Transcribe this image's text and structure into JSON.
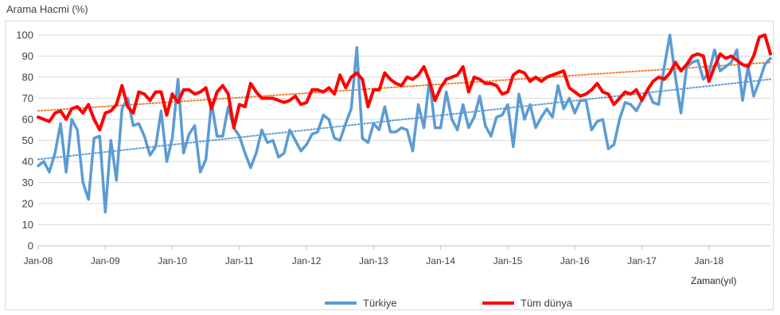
{
  "chart_data": {
    "type": "line",
    "ylabel": "Arama Hacmi (%)",
    "xlabel": "Zaman(yıl)",
    "ylim": [
      0,
      100
    ],
    "yticks": [
      0,
      10,
      20,
      30,
      40,
      50,
      60,
      70,
      80,
      90,
      100
    ],
    "x_start": "2008-01",
    "x_end": "2018-12",
    "x_ticks": [
      "Jan-08",
      "Jan-09",
      "Jan-10",
      "Jan-11",
      "Jan-12",
      "Jan-13",
      "Jan-14",
      "Jan-15",
      "Jan-16",
      "Jan-17",
      "Jan-18"
    ],
    "grid": "horizontal",
    "legend_position": "bottom",
    "series": [
      {
        "name": "Türkiye",
        "color": "#5b9bd5",
        "trendline": {
          "color": "#5b9bd5",
          "style": "dotted",
          "start": 41,
          "end": 79
        },
        "values": [
          38,
          40,
          35,
          44,
          58,
          35,
          60,
          55,
          30,
          22,
          51,
          52,
          16,
          50,
          31,
          65,
          70,
          57,
          58,
          52,
          43,
          47,
          64,
          40,
          51,
          79,
          44,
          53,
          57,
          35,
          41,
          68,
          52,
          52,
          66,
          56,
          52,
          44,
          37,
          44,
          55,
          49,
          50,
          42,
          44,
          55,
          50,
          45,
          48,
          53,
          54,
          62,
          60,
          51,
          50,
          58,
          65,
          94,
          51,
          49,
          58,
          55,
          66,
          54,
          54,
          56,
          55,
          45,
          67,
          56,
          79,
          56,
          56,
          73,
          60,
          55,
          67,
          56,
          61,
          71,
          57,
          52,
          61,
          62,
          67,
          47,
          72,
          60,
          67,
          56,
          61,
          65,
          61,
          76,
          65,
          70,
          63,
          69,
          69,
          55,
          59,
          60,
          46,
          48,
          60,
          68,
          67,
          64,
          69,
          74,
          68,
          67,
          85,
          100,
          80,
          63,
          85,
          87,
          88,
          79,
          82,
          93,
          83,
          85,
          87,
          93,
          69,
          85,
          71,
          78,
          86,
          89
        ]
      },
      {
        "name": "Tüm dünya",
        "color": "#ff0000",
        "trendline": {
          "color": "#ed7d31",
          "style": "dotted",
          "start": 64,
          "end": 87
        },
        "values": [
          61,
          60,
          59,
          63,
          64,
          60,
          65,
          66,
          63,
          67,
          60,
          55,
          63,
          64,
          67,
          76,
          66,
          63,
          73,
          72,
          69,
          73,
          73,
          62,
          72,
          68,
          74,
          74,
          72,
          73,
          75,
          65,
          73,
          76,
          72,
          56,
          67,
          66,
          77,
          73,
          70,
          70,
          70,
          69,
          68,
          69,
          71,
          67,
          68,
          74,
          74,
          73,
          75,
          72,
          81,
          75,
          80,
          82,
          79,
          66,
          74,
          74,
          82,
          79,
          77,
          76,
          80,
          79,
          81,
          85,
          78,
          69,
          75,
          79,
          80,
          81,
          85,
          73,
          80,
          79,
          77,
          77,
          76,
          72,
          73,
          81,
          83,
          82,
          78,
          80,
          78,
          80,
          81,
          82,
          83,
          75,
          73,
          71,
          72,
          74,
          77,
          73,
          72,
          67,
          70,
          73,
          72,
          74,
          69,
          74,
          78,
          80,
          79,
          82,
          87,
          83,
          86,
          90,
          91,
          90,
          78,
          85,
          91,
          89,
          90,
          88,
          86,
          85,
          90,
          99,
          100,
          91
        ]
      }
    ]
  }
}
